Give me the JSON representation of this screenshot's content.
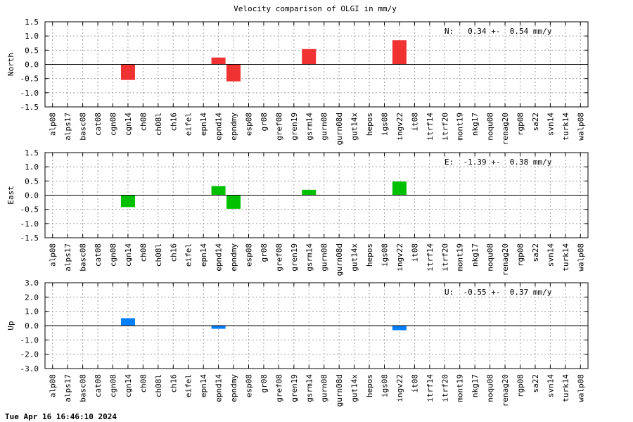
{
  "title": "Velocity comparison of OLGI in mm/y",
  "timestamp": "Tue Apr 16 16:46:10 2024",
  "chart_data": [
    {
      "type": "bar",
      "ylabel": "North",
      "color": "#f03232",
      "ylim": [
        -1.5,
        1.5
      ],
      "yticks": [
        -1.5,
        -1.0,
        -0.5,
        0.0,
        0.5,
        1.0,
        1.5
      ],
      "ytick_labels": [
        "-1.5",
        "-1.0",
        "-0.5",
        "0.0",
        "0.5",
        "1.0",
        "1.5"
      ],
      "annotation": "N:   0.34 +-  0.54 mm/y",
      "grid": true,
      "categories": [
        "alp08",
        "alps17",
        "basc08",
        "cat08",
        "cgn08",
        "cgn14",
        "ch08",
        "ch08l",
        "ch16",
        "eifel",
        "epn14",
        "epnd14",
        "epndmy",
        "esp08",
        "gr08",
        "gref08",
        "gren19",
        "gsrm14",
        "gurn08",
        "gurn08d",
        "gut14x",
        "hepos",
        "igs08",
        "ingv22",
        "it08",
        "itrf14",
        "itrf20",
        "mont19",
        "nkg17",
        "noqu08",
        "renag20",
        "rgp08",
        "sa22",
        "svn14",
        "turk14",
        "walp08"
      ],
      "values": [
        null,
        null,
        null,
        null,
        null,
        -0.55,
        null,
        null,
        null,
        null,
        null,
        0.24,
        -0.6,
        null,
        null,
        null,
        null,
        0.54,
        null,
        null,
        null,
        null,
        null,
        0.85,
        null,
        null,
        null,
        null,
        null,
        null,
        null,
        null,
        null,
        null,
        null,
        null
      ]
    },
    {
      "type": "bar",
      "ylabel": "East",
      "color": "#00c000",
      "ylim": [
        -1.5,
        1.5
      ],
      "yticks": [
        -1.5,
        -1.0,
        -0.5,
        0.0,
        0.5,
        1.0,
        1.5
      ],
      "ytick_labels": [
        "-1.5",
        "-1.0",
        "-0.5",
        "0.0",
        "0.5",
        "1.0",
        "1.5"
      ],
      "annotation": "E:  -1.39 +-  0.38 mm/y",
      "grid": true,
      "categories": [
        "alp08",
        "alps17",
        "basc08",
        "cat08",
        "cgn08",
        "cgn14",
        "ch08",
        "ch08l",
        "ch16",
        "eifel",
        "epn14",
        "epnd14",
        "epndmy",
        "esp08",
        "gr08",
        "gref08",
        "gren19",
        "gsrm14",
        "gurn08",
        "gurn08d",
        "gut14x",
        "hepos",
        "igs08",
        "ingv22",
        "it08",
        "itrf14",
        "itrf20",
        "mont19",
        "nkg17",
        "noqu08",
        "renag20",
        "rgp08",
        "sa22",
        "svn14",
        "turk14",
        "walp08"
      ],
      "values": [
        null,
        null,
        null,
        null,
        null,
        -0.42,
        null,
        null,
        null,
        null,
        null,
        0.32,
        -0.48,
        null,
        null,
        null,
        null,
        0.19,
        null,
        null,
        null,
        null,
        null,
        0.48,
        null,
        null,
        null,
        null,
        null,
        null,
        null,
        null,
        null,
        null,
        null,
        null
      ]
    },
    {
      "type": "bar",
      "ylabel": "Up",
      "color": "#0080ff",
      "ylim": [
        -3.0,
        3.0
      ],
      "yticks": [
        -3.0,
        -2.0,
        -1.0,
        0.0,
        1.0,
        2.0,
        3.0
      ],
      "ytick_labels": [
        "-3.0",
        "-2.0",
        "-1.0",
        "0.0",
        "1.0",
        "2.0",
        "3.0"
      ],
      "annotation": "U:  -0.55 +-  0.37 mm/y",
      "grid": true,
      "categories": [
        "alp08",
        "alps17",
        "basc08",
        "cat08",
        "cgn08",
        "cgn14",
        "ch08",
        "ch08l",
        "ch16",
        "eifel",
        "epn14",
        "epnd14",
        "epndmy",
        "esp08",
        "gr08",
        "gref08",
        "gren19",
        "gsrm14",
        "gurn08",
        "gurn08d",
        "gut14x",
        "hepos",
        "igs08",
        "ingv22",
        "it08",
        "itrf14",
        "itrf20",
        "mont19",
        "nkg17",
        "noqu08",
        "renag20",
        "rgp08",
        "sa22",
        "svn14",
        "turk14",
        "walp08"
      ],
      "values": [
        null,
        null,
        null,
        null,
        null,
        0.52,
        null,
        null,
        null,
        null,
        null,
        -0.22,
        null,
        null,
        null,
        null,
        null,
        null,
        null,
        null,
        null,
        null,
        null,
        -0.32,
        null,
        null,
        null,
        null,
        null,
        null,
        null,
        null,
        null,
        null,
        null,
        null
      ]
    }
  ]
}
